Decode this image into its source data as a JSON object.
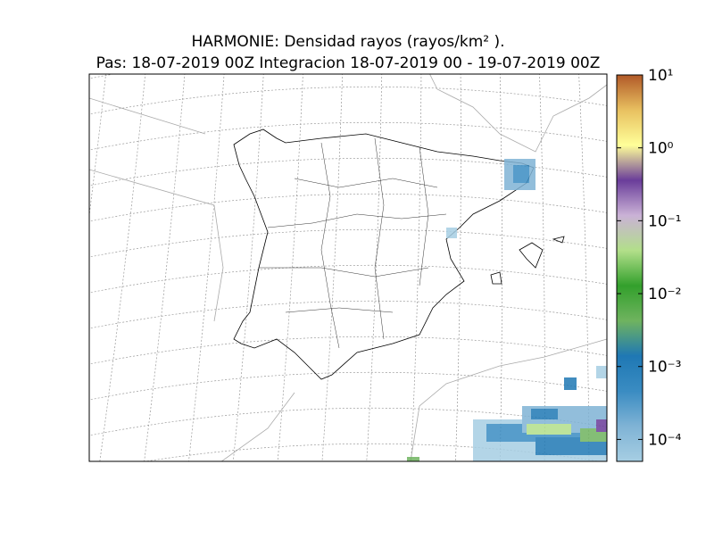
{
  "title": [
    "HARMONIE: Densidad rayos  (rayos/km² ).",
    "Pas: 18-07-2019 00Z Integracion 18-07-2019 00 - 19-07-2019 00Z"
  ],
  "colorbar": {
    "log": true,
    "lim": [
      5e-05,
      10
    ],
    "ticks": [
      {
        "value": 0.0001,
        "label": "10⁻⁴"
      },
      {
        "value": 0.001,
        "label": "10⁻³"
      },
      {
        "value": 0.01,
        "label": "10⁻²"
      },
      {
        "value": 0.1,
        "label": "10⁻¹"
      },
      {
        "value": 1,
        "label": "10⁰"
      },
      {
        "value": 10,
        "label": "10¹"
      }
    ],
    "colors": [
      "#a6cee3",
      "#7fb3d5",
      "#3a8cc2",
      "#1f78b4",
      "#6fb35f",
      "#33a02c",
      "#b2df8a",
      "#cab2d6",
      "#6a3d9a",
      "#ffff99",
      "#e8c060",
      "#b15928"
    ]
  }
}
